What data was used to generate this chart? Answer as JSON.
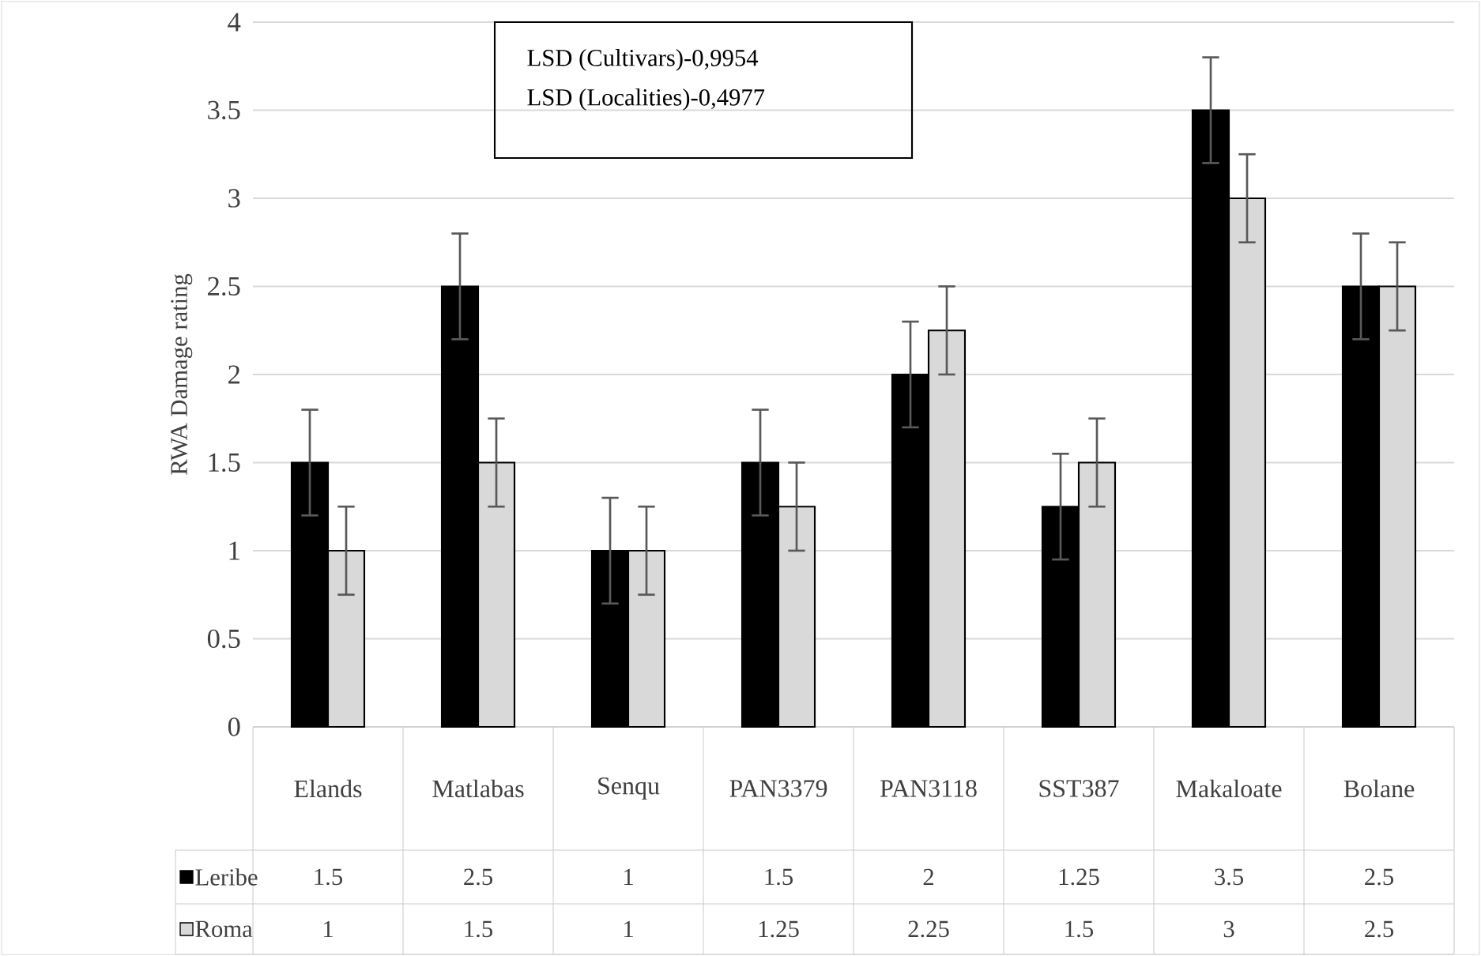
{
  "chart_data": {
    "type": "bar",
    "ylabel": "RWA Damage rating",
    "categories": [
      "Elands",
      "Matlabas",
      "Senqu",
      "PAN3379",
      "PAN3118",
      "SST387",
      "Makaloate",
      "Bolane"
    ],
    "series": [
      {
        "name": "Leribe",
        "color": "#000000",
        "values": [
          1.5,
          2.5,
          1,
          1.5,
          2,
          1.25,
          3.5,
          2.5
        ],
        "errors": [
          0.3,
          0.3,
          0.3,
          0.3,
          0.3,
          0.3,
          0.3,
          0.3
        ]
      },
      {
        "name": "Roma",
        "color": "#d9d9d9",
        "values": [
          1,
          1.5,
          1,
          1.25,
          2.25,
          1.5,
          3,
          2.5
        ],
        "errors": [
          0.25,
          0.25,
          0.25,
          0.25,
          0.25,
          0.25,
          0.25,
          0.25
        ]
      }
    ],
    "ylim": [
      0,
      4
    ],
    "yticks": [
      0,
      0.5,
      1,
      1.5,
      2,
      2.5,
      3,
      3.5,
      4
    ],
    "grid": "y",
    "legend": "bottom",
    "data_labels": true,
    "annotations": [
      "LSD (Cultivars)-0,9954",
      "LSD (Localities)-0,4977"
    ]
  }
}
